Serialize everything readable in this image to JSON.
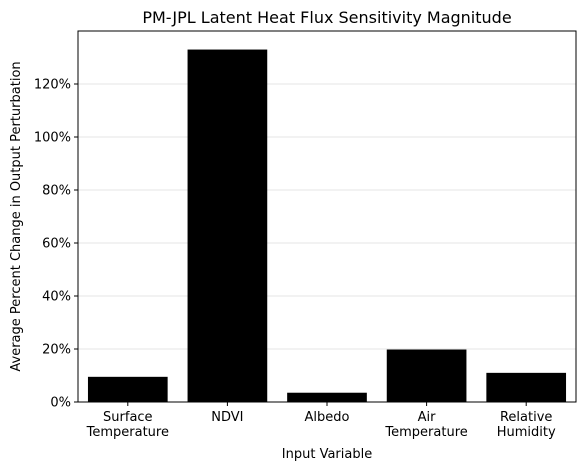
{
  "chart_data": {
    "type": "bar",
    "title": "PM-JPL Latent Heat Flux Sensitivity Magnitude",
    "xlabel": "Input Variable",
    "ylabel": "Average Percent Change in Output Perturbation",
    "categories": [
      [
        "Surface",
        "Temperature"
      ],
      [
        "NDVI"
      ],
      [
        "Albedo"
      ],
      [
        "Air",
        "Temperature"
      ],
      [
        "Relative",
        "Humidity"
      ]
    ],
    "values": [
      9.5,
      133,
      3.5,
      19.8,
      11
    ],
    "ylim": [
      0,
      140
    ],
    "yticks": [
      0,
      20,
      40,
      60,
      80,
      100,
      120
    ],
    "ytick_labels": [
      "0%",
      "20%",
      "40%",
      "60%",
      "80%",
      "100%",
      "120%"
    ],
    "grid": "horizontal",
    "bar_color": "#000000",
    "grid_color": "#dddddd"
  }
}
